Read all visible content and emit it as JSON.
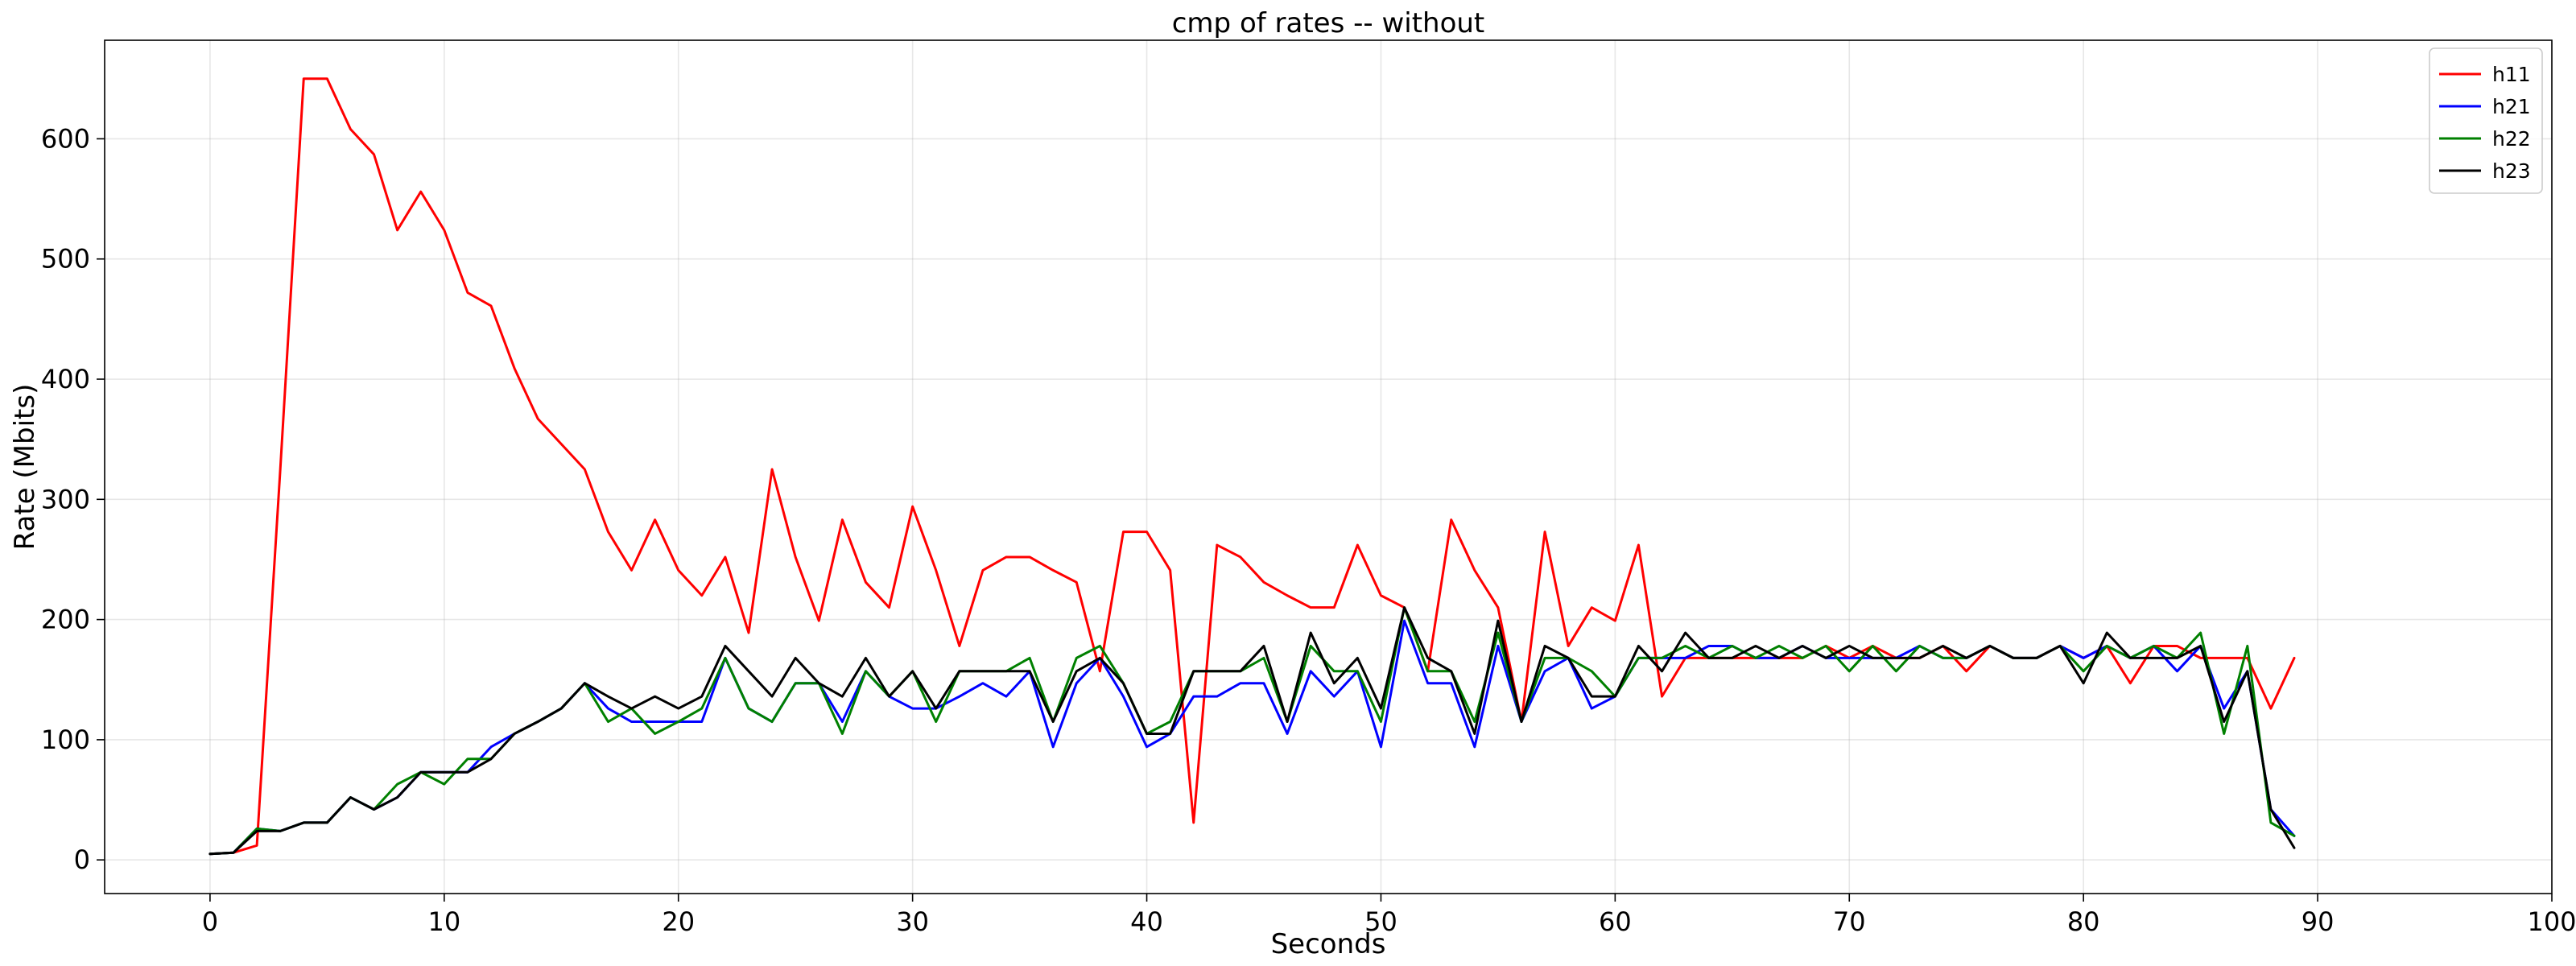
{
  "chart_data": {
    "type": "line",
    "title": "cmp of rates -- without",
    "xlabel": "Seconds",
    "ylabel": "Rate (Mbits)",
    "xlim": [
      -4.5,
      100
    ],
    "ylim": [
      -28,
      682
    ],
    "xticks": [
      0,
      10,
      20,
      30,
      40,
      50,
      60,
      70,
      80,
      90,
      100
    ],
    "yticks": [
      0,
      100,
      200,
      300,
      400,
      500,
      600
    ],
    "grid": true,
    "legend_position": "top-right",
    "series": [
      {
        "name": "h11",
        "color": "#ff0000",
        "x": [
          0,
          1,
          2,
          3,
          4,
          5,
          6,
          7,
          8,
          9,
          10,
          11,
          12,
          13,
          14,
          15,
          16,
          17,
          18,
          19,
          20,
          21,
          22,
          23,
          24,
          25,
          26,
          27,
          28,
          29,
          30,
          31,
          32,
          33,
          34,
          35,
          36,
          37,
          38,
          39,
          40,
          41,
          42,
          43,
          44,
          45,
          46,
          47,
          48,
          49,
          50,
          51,
          52,
          53,
          54,
          55,
          56,
          57,
          58,
          59,
          60,
          61,
          62,
          63,
          64,
          65,
          66,
          67,
          68,
          69,
          70,
          71,
          72,
          73,
          74,
          75,
          76,
          77,
          78,
          79,
          80,
          81,
          82,
          83,
          84,
          85,
          86,
          87,
          88,
          89
        ],
        "values": [
          5,
          6,
          12,
          325,
          650,
          650,
          608,
          587,
          524,
          556,
          524,
          472,
          461,
          409,
          367,
          346,
          325,
          273,
          241,
          283,
          241,
          220,
          252,
          189,
          325,
          252,
          199,
          283,
          231,
          210,
          294,
          241,
          178,
          241,
          252,
          252,
          241,
          231,
          157,
          273,
          273,
          241,
          31,
          262,
          252,
          231,
          220,
          210,
          210,
          262,
          220,
          210,
          157,
          283,
          241,
          210,
          115,
          273,
          178,
          210,
          199,
          262,
          136,
          168,
          168,
          168,
          168,
          168,
          168,
          178,
          168,
          178,
          168,
          168,
          178,
          157,
          178,
          168,
          168,
          178,
          168,
          178,
          147,
          178,
          178,
          168,
          168,
          168,
          126,
          168
        ]
      },
      {
        "name": "h21",
        "color": "#0000ff",
        "x": [
          0,
          1,
          2,
          3,
          4,
          5,
          6,
          7,
          8,
          9,
          10,
          11,
          12,
          13,
          14,
          15,
          16,
          17,
          18,
          19,
          20,
          21,
          22,
          23,
          24,
          25,
          26,
          27,
          28,
          29,
          30,
          31,
          32,
          33,
          34,
          35,
          36,
          37,
          38,
          39,
          40,
          41,
          42,
          43,
          44,
          45,
          46,
          47,
          48,
          49,
          50,
          51,
          52,
          53,
          54,
          55,
          56,
          57,
          58,
          59,
          60,
          61,
          62,
          63,
          64,
          65,
          66,
          67,
          68,
          69,
          70,
          71,
          72,
          73,
          74,
          75,
          76,
          77,
          78,
          79,
          80,
          81,
          82,
          83,
          84,
          85,
          86,
          87,
          88,
          89
        ],
        "values": [
          5,
          6,
          26,
          24,
          31,
          31,
          52,
          42,
          52,
          73,
          73,
          73,
          94,
          105,
          115,
          126,
          147,
          126,
          115,
          115,
          115,
          115,
          168,
          126,
          115,
          147,
          147,
          115,
          157,
          136,
          126,
          126,
          136,
          147,
          136,
          157,
          94,
          147,
          168,
          136,
          94,
          105,
          136,
          136,
          147,
          147,
          105,
          157,
          136,
          157,
          94,
          199,
          147,
          147,
          94,
          178,
          115,
          157,
          168,
          126,
          136,
          168,
          168,
          168,
          178,
          178,
          168,
          168,
          178,
          168,
          168,
          168,
          168,
          178,
          168,
          168,
          178,
          168,
          168,
          178,
          168,
          178,
          168,
          178,
          157,
          178,
          126,
          157,
          42,
          20
        ]
      },
      {
        "name": "h22",
        "color": "#008000",
        "x": [
          0,
          1,
          2,
          3,
          4,
          5,
          6,
          7,
          8,
          9,
          10,
          11,
          12,
          13,
          14,
          15,
          16,
          17,
          18,
          19,
          20,
          21,
          22,
          23,
          24,
          25,
          26,
          27,
          28,
          29,
          30,
          31,
          32,
          33,
          34,
          35,
          36,
          37,
          38,
          39,
          40,
          41,
          42,
          43,
          44,
          45,
          46,
          47,
          48,
          49,
          50,
          51,
          52,
          53,
          54,
          55,
          56,
          57,
          58,
          59,
          60,
          61,
          62,
          63,
          64,
          65,
          66,
          67,
          68,
          69,
          70,
          71,
          72,
          73,
          74,
          75,
          76,
          77,
          78,
          79,
          80,
          81,
          82,
          83,
          84,
          85,
          86,
          87,
          88,
          89
        ],
        "values": [
          5,
          6,
          26,
          24,
          31,
          31,
          52,
          42,
          63,
          73,
          63,
          84,
          84,
          105,
          115,
          126,
          147,
          115,
          126,
          105,
          115,
          126,
          168,
          126,
          115,
          147,
          147,
          105,
          157,
          136,
          157,
          115,
          157,
          157,
          157,
          168,
          115,
          168,
          178,
          147,
          105,
          115,
          157,
          157,
          157,
          168,
          115,
          178,
          157,
          157,
          115,
          210,
          157,
          157,
          115,
          189,
          115,
          168,
          168,
          157,
          136,
          168,
          168,
          178,
          168,
          178,
          168,
          178,
          168,
          178,
          157,
          178,
          157,
          178,
          168,
          168,
          178,
          168,
          168,
          178,
          157,
          178,
          168,
          178,
          168,
          189,
          105,
          178,
          31,
          20
        ]
      },
      {
        "name": "h23",
        "color": "#000000",
        "x": [
          0,
          1,
          2,
          3,
          4,
          5,
          6,
          7,
          8,
          9,
          10,
          11,
          12,
          13,
          14,
          15,
          16,
          17,
          18,
          19,
          20,
          21,
          22,
          23,
          24,
          25,
          26,
          27,
          28,
          29,
          30,
          31,
          32,
          33,
          34,
          35,
          36,
          37,
          38,
          39,
          40,
          41,
          42,
          43,
          44,
          45,
          46,
          47,
          48,
          49,
          50,
          51,
          52,
          53,
          54,
          55,
          56,
          57,
          58,
          59,
          60,
          61,
          62,
          63,
          64,
          65,
          66,
          67,
          68,
          69,
          70,
          71,
          72,
          73,
          74,
          75,
          76,
          77,
          78,
          79,
          80,
          81,
          82,
          83,
          84,
          85,
          86,
          87,
          88,
          89
        ],
        "values": [
          5,
          6,
          24,
          24,
          31,
          31,
          52,
          42,
          52,
          73,
          73,
          73,
          84,
          105,
          115,
          126,
          147,
          136,
          126,
          136,
          126,
          136,
          178,
          157,
          136,
          168,
          147,
          136,
          168,
          136,
          157,
          126,
          157,
          157,
          157,
          157,
          115,
          157,
          168,
          147,
          105,
          105,
          157,
          157,
          157,
          178,
          115,
          189,
          147,
          168,
          126,
          210,
          168,
          157,
          105,
          199,
          115,
          178,
          168,
          136,
          136,
          178,
          157,
          189,
          168,
          168,
          178,
          168,
          178,
          168,
          178,
          168,
          168,
          168,
          178,
          168,
          178,
          168,
          168,
          178,
          147,
          189,
          168,
          168,
          168,
          178,
          115,
          157,
          42,
          10
        ]
      }
    ]
  }
}
